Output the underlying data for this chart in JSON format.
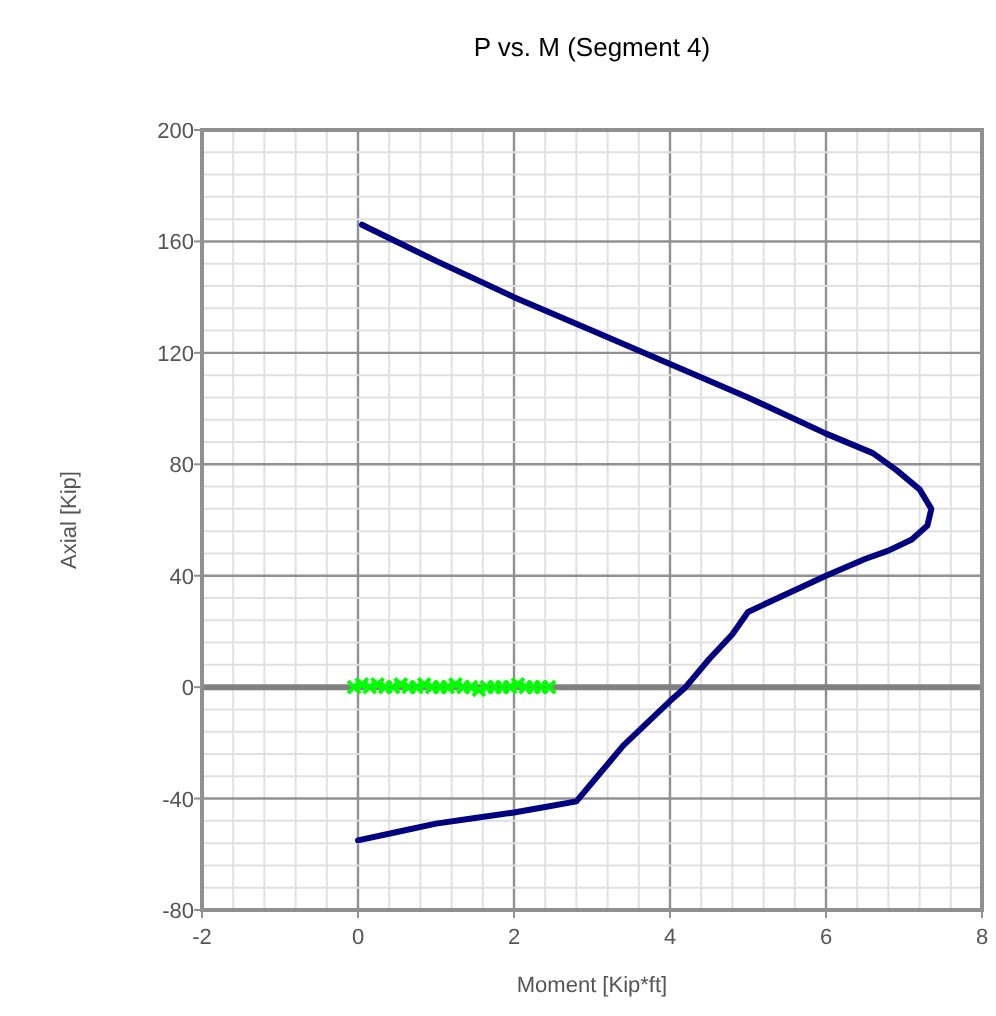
{
  "chart_data": {
    "type": "line",
    "title": "P vs. M (Segment 4)",
    "xlabel": "Moment [Kip*ft]",
    "ylabel": "Axial [Kip]",
    "xlim": [
      -2,
      8
    ],
    "ylim": [
      -80,
      200
    ],
    "xticks": [
      -2,
      {
        "value": -1.6,
        "label": null
      },
      {
        "value": -1.2,
        "label": null
      },
      {
        "value": -0.8,
        "label": null
      },
      {
        "value": -0.4,
        "label": null
      },
      0,
      {
        "value": 0.4,
        "label": null
      },
      {
        "value": 0.8,
        "label": null
      },
      {
        "value": 1.2,
        "label": null
      },
      {
        "value": 1.6,
        "label": null
      },
      2,
      {
        "value": 2.4,
        "label": null
      },
      {
        "value": 2.8,
        "label": null
      },
      {
        "value": 3.2,
        "label": null
      },
      {
        "value": 3.6,
        "label": null
      },
      4,
      {
        "value": 4.4,
        "label": null
      },
      {
        "value": 4.8,
        "label": null
      },
      {
        "value": 5.2,
        "label": null
      },
      {
        "value": 5.6,
        "label": null
      },
      6,
      {
        "value": 6.4,
        "label": null
      },
      {
        "value": 6.8,
        "label": null
      },
      {
        "value": 7.2,
        "label": null
      },
      {
        "value": 7.6,
        "label": null
      },
      8
    ],
    "yticks": [
      -80,
      {
        "value": -72,
        "label": null
      },
      {
        "value": -64,
        "label": null
      },
      {
        "value": -56,
        "label": null
      },
      {
        "value": -48,
        "label": null
      },
      -40,
      {
        "value": -32,
        "label": null
      },
      {
        "value": -24,
        "label": null
      },
      {
        "value": -16,
        "label": null
      },
      {
        "value": -8,
        "label": null
      },
      0,
      {
        "value": 8,
        "label": null
      },
      {
        "value": 16,
        "label": null
      },
      {
        "value": 24,
        "label": null
      },
      {
        "value": 32,
        "label": null
      },
      40,
      {
        "value": 48,
        "label": null
      },
      {
        "value": 56,
        "label": null
      },
      {
        "value": 64,
        "label": null
      },
      {
        "value": 72,
        "label": null
      },
      80,
      {
        "value": 88,
        "label": null
      },
      {
        "value": 96,
        "label": null
      },
      {
        "value": 104,
        "label": null
      },
      {
        "value": 112,
        "label": null
      },
      120,
      {
        "value": 128,
        "label": null
      },
      {
        "value": 136,
        "label": null
      },
      {
        "value": 144,
        "label": null
      },
      {
        "value": 152,
        "label": null
      },
      160,
      {
        "value": 168,
        "label": null
      },
      {
        "value": 176,
        "label": null
      },
      {
        "value": 184,
        "label": null
      },
      {
        "value": 192,
        "label": null
      },
      200
    ],
    "grid": true,
    "ref_lines": [
      {
        "axis": "y",
        "value": 0,
        "label": null,
        "color": "#808080"
      }
    ],
    "series": [
      {
        "color": "#000080",
        "marker": "none",
        "line_style": "solid",
        "x": [
          0.05,
          1,
          2,
          3,
          4,
          5,
          6,
          6.6,
          6.9,
          7.2,
          7.35,
          7.3,
          7.1,
          6.8,
          6.5,
          6,
          5,
          4.8,
          4.5,
          4.2,
          4,
          3.7,
          3.4,
          3.1,
          2.8,
          2.4,
          2,
          1.5,
          1,
          0.5,
          0
        ],
        "values": [
          166,
          153,
          140,
          128,
          116,
          104,
          91,
          84,
          78,
          71,
          64,
          58,
          53,
          49,
          46,
          40,
          27,
          19,
          10,
          0,
          -5,
          -13,
          -21,
          -31,
          -41,
          -43,
          -45,
          -47,
          -49,
          -52,
          -55
        ]
      },
      {
        "type": "scatter",
        "color": "#00ff00",
        "marker": "cross",
        "x": [
          -0.05,
          0.05,
          0.15,
          0.25,
          0.35,
          0.45,
          0.55,
          0.65,
          0.75,
          0.85,
          0.95,
          1.05,
          1.15,
          1.25,
          1.35,
          1.45,
          1.55,
          1.65,
          1.75,
          1.85,
          1.95,
          2.05,
          2.15,
          2.25,
          2.35,
          2.45
        ],
        "values": [
          0,
          1,
          0,
          1,
          0,
          0,
          1,
          0,
          0,
          1,
          0,
          0,
          0,
          1,
          0,
          0,
          -1,
          0,
          0,
          0,
          0,
          1,
          0,
          0,
          0,
          0
        ]
      }
    ]
  }
}
